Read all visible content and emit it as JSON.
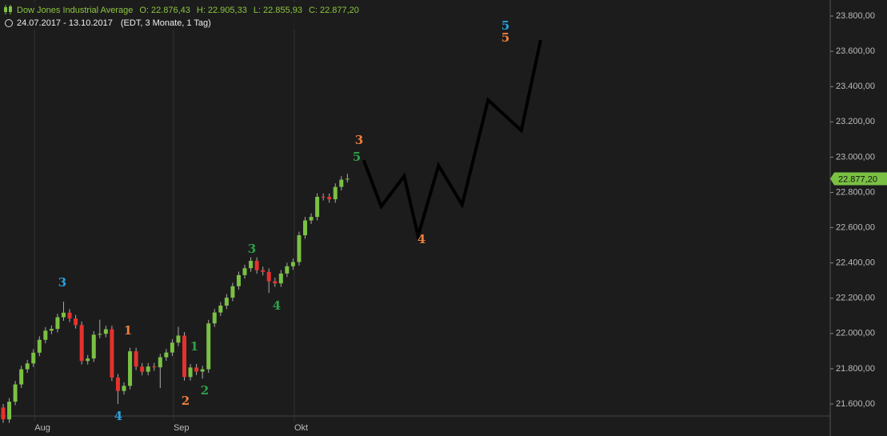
{
  "chart_data": {
    "type": "candlestick",
    "title": "Dow Jones Industrial Average",
    "ohlc_header": [
      {
        "name": "O:",
        "value": 22876.43,
        "label": "22.876,43"
      },
      {
        "name": "H:",
        "value": 22905.33,
        "label": "22.905,33"
      },
      {
        "name": "L:",
        "value": 22855.93,
        "label": "22.855,93"
      },
      {
        "name": "C:",
        "value": 22877.2,
        "label": "22.877,20"
      }
    ],
    "date_range": "24.07.2017 - 13.10.2017",
    "period_info": "(EDT, 3 Monate, 1 Tag)",
    "categories": [
      null,
      null,
      null,
      null,
      null,
      null,
      "Aug",
      null,
      null,
      null,
      null,
      null,
      null,
      null,
      null,
      null,
      null,
      null,
      null,
      null,
      null,
      null,
      null,
      null,
      null,
      null,
      null,
      null,
      null,
      "Sep",
      null,
      null,
      null,
      null,
      null,
      null,
      null,
      null,
      null,
      null,
      null,
      null,
      null,
      null,
      null,
      null,
      null,
      null,
      null,
      "Okt",
      null,
      null,
      null,
      null,
      null,
      null,
      null,
      null
    ],
    "open": [
      21580,
      21513,
      21613,
      21711,
      21797,
      21830,
      21891,
      21964,
      22016,
      22026,
      22092,
      22118,
      22085,
      22048,
      21844,
      21858,
      21993,
      21998,
      22024,
      21750,
      21674,
      21703,
      21899,
      21812,
      21783,
      21813,
      21808,
      21865,
      21892,
      21948,
      21988,
      21753,
      21807,
      21784,
      21797,
      22057,
      22119,
      22158,
      22203,
      22268,
      22331,
      22370,
      22412,
      22359,
      22349,
      22296,
      22284,
      22340,
      22381,
      22405,
      22557,
      22641,
      22661,
      22775,
      22774,
      22761,
      22831,
      22876.43
    ],
    "high": [
      21600,
      21633,
      21731,
      21817,
      21850,
      21911,
      21984,
      22036,
      22046,
      22112,
      22180,
      22138,
      22105,
      22068,
      21878,
      22013,
      22078,
      22044,
      22044,
      21770,
      21723,
      21919,
      21919,
      21832,
      21833,
      21833,
      21885,
      21912,
      21968,
      22038,
      22008,
      21827,
      21827,
      21817,
      22077,
      22139,
      22178,
      22223,
      22288,
      22351,
      22390,
      22432,
      22432,
      22379,
      22369,
      22316,
      22360,
      22401,
      22425,
      22577,
      22661,
      22681,
      22795,
      22794,
      22794,
      22851,
      22892,
      22905.33
    ],
    "low": [
      21493,
      21493,
      21593,
      21691,
      21777,
      21810,
      21871,
      21944,
      21996,
      22006,
      22072,
      22065,
      22028,
      21824,
      21824,
      21838,
      21973,
      21978,
      21730,
      21600,
      21654,
      21683,
      21792,
      21763,
      21763,
      21788,
      21690,
      21845,
      21872,
      21928,
      21733,
      21733,
      21764,
      21744,
      21777,
      22037,
      22099,
      22138,
      22183,
      22248,
      22311,
      22350,
      22339,
      22329,
      22230,
      22264,
      22264,
      22320,
      22361,
      22385,
      22537,
      22621,
      22641,
      22754,
      22741,
      22741,
      22811,
      22855.93
    ],
    "close": [
      21513,
      21613,
      21711,
      21797,
      21830,
      21891,
      21964,
      22016,
      22026,
      22092,
      22118,
      22085,
      22048,
      21844,
      21858,
      21993,
      21998,
      22024,
      21750,
      21674,
      21703,
      21899,
      21812,
      21783,
      21813,
      21808,
      21865,
      21892,
      21948,
      21988,
      21753,
      21807,
      21784,
      21797,
      22057,
      22119,
      22158,
      22203,
      22268,
      22331,
      22370,
      22412,
      22359,
      22349,
      22296,
      22284,
      22340,
      22381,
      22405,
      22557,
      22641,
      22661,
      22775,
      22774,
      22761,
      22831,
      22872,
      22877.2
    ],
    "up_color": "#7ac143",
    "down_color": "#e5322d",
    "projection": {
      "x": [
        59.7,
        62.6,
        66.4,
        68.7,
        72.1,
        76.0,
        80.3,
        85.8,
        89.0
      ],
      "values": [
        22983,
        22720,
        22893,
        22553,
        22952,
        22730,
        23324,
        23151,
        23664
      ],
      "color": "#000000"
    },
    "wave_labels": [
      {
        "text": "3",
        "color": "#2aa0dc"
      },
      {
        "text": "4",
        "color": "#2aa0dc"
      },
      {
        "text": "1",
        "color": "#f07f3c"
      },
      {
        "text": "2",
        "color": "#f07f3c"
      },
      {
        "text": "1",
        "color": "#2ea04a"
      },
      {
        "text": "2",
        "color": "#2ea04a"
      },
      {
        "text": "3",
        "color": "#2ea04a"
      },
      {
        "text": "4",
        "color": "#2ea04a"
      },
      {
        "text": "5",
        "color": "#2ea04a"
      },
      {
        "text": "3",
        "color": "#f07f3c"
      },
      {
        "text": "4",
        "color": "#f07f3c"
      },
      {
        "text": "5",
        "color": "#2aa0dc"
      },
      {
        "text": "5",
        "color": "#f07f3c"
      }
    ],
    "last_price": {
      "value": 22877.2,
      "label": "22.877,20"
    },
    "ylim": [
      21532,
      23891
    ],
    "yticks": [
      {
        "value": 21600,
        "label": "21.600,00"
      },
      {
        "value": 21800,
        "label": "21.800,00"
      },
      {
        "value": 22000,
        "label": "22.000,00"
      },
      {
        "value": 22200,
        "label": "22.200,00"
      },
      {
        "value": 22400,
        "label": "22.400,00"
      },
      {
        "value": 22600,
        "label": "22.600,00"
      },
      {
        "value": 22800,
        "label": "22.800,00"
      },
      {
        "value": 23000,
        "label": "23.000,00"
      },
      {
        "value": 23200,
        "label": "23.200,00"
      },
      {
        "value": 23400,
        "label": "23.400,00"
      },
      {
        "value": 23600,
        "label": "23.600,00"
      },
      {
        "value": 23800,
        "label": "23.800,00"
      }
    ]
  }
}
